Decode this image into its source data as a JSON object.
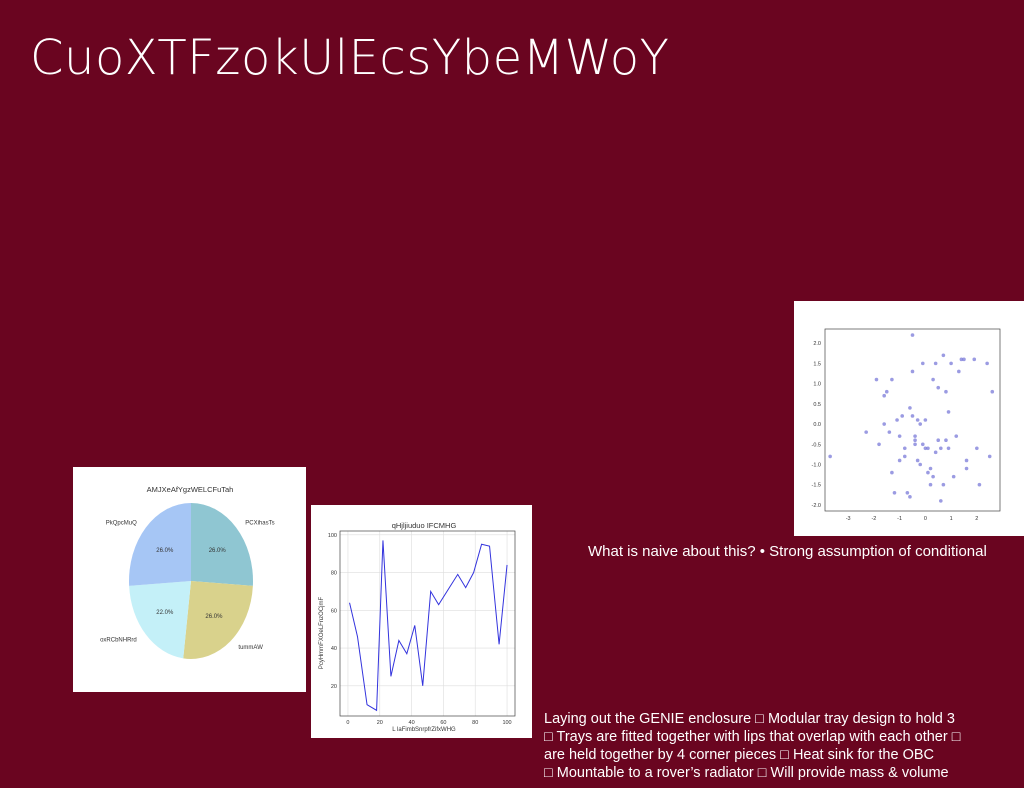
{
  "slide": {
    "title": "CuoXTFzokUlEcsYbeMWoY",
    "caption_top": "What is naive about this? • Strong assumption of conditional",
    "caption_bottom": [
      "Laying out the GENIE enclosure □ Modular tray design to hold 3",
      "□ Trays are fitted together with lips that overlap with each other □",
      "are held together by 4 corner pieces □ Heat sink for the OBC",
      "□ Mountable to a rover’s radiator □ Will provide mass & volume"
    ]
  },
  "chart_data": [
    {
      "type": "pie",
      "title": "AMJXeAfYgzWELCFuTah",
      "labels": [
        "PCXihasTs",
        "tummAW",
        "oxRCbNHRrd",
        "PkQpcMuQ"
      ],
      "values": [
        26.0,
        26.0,
        22.0,
        26.0
      ],
      "value_labels": [
        "26.0%",
        "26.0%",
        "22.0%",
        "26.0%"
      ],
      "colors": [
        "#8fc6d2",
        "#d9d28c",
        "#c4f0f8",
        "#a6c6f5"
      ]
    },
    {
      "type": "line",
      "title": "qHjljiuduo IFCMHG",
      "xlabel": "L laFimbSnrpfrZifxWHG",
      "ylabel": "PcyHmmFXOeLFnzOCjmF",
      "x": [
        1,
        6,
        12,
        18,
        22,
        27,
        32,
        37,
        42,
        47,
        52,
        57,
        63,
        69,
        74,
        79,
        84,
        89,
        95,
        100
      ],
      "y": [
        64,
        46,
        10,
        7,
        97,
        25,
        44,
        37,
        52,
        20,
        70,
        63,
        71,
        79,
        72,
        80,
        95,
        94,
        42,
        84
      ],
      "xlim": [
        -5,
        105
      ],
      "ylim": [
        4,
        102
      ],
      "xticks": [
        0,
        20,
        40,
        60,
        80,
        100
      ],
      "yticks": [
        20,
        40,
        60,
        80,
        100
      ],
      "grid": true,
      "color": "#3333dd"
    },
    {
      "type": "scatter",
      "xlim": [
        -3.9,
        2.9
      ],
      "ylim": [
        -2.15,
        2.35
      ],
      "xticks": [
        -3,
        -2,
        -1,
        0,
        1,
        2
      ],
      "yticks": [
        -2.0,
        -1.5,
        -1.0,
        -0.5,
        0.0,
        0.5,
        1.0,
        1.5,
        2.0
      ],
      "color": "#7a7ad8",
      "x": [
        -3.7,
        -0.5,
        -2.3,
        -1.9,
        -1.8,
        -1.6,
        -1.5,
        -1.4,
        -1.3,
        -1.2,
        -1.1,
        -1.0,
        -1.0,
        -0.9,
        -0.8,
        -0.8,
        -0.7,
        -0.6,
        -0.6,
        -0.5,
        -0.5,
        -0.4,
        -0.4,
        -0.3,
        -0.3,
        -0.2,
        -0.2,
        -0.1,
        -0.1,
        0.0,
        0.0,
        0.1,
        0.1,
        0.2,
        0.2,
        0.3,
        0.3,
        0.4,
        0.4,
        0.5,
        0.5,
        0.6,
        0.6,
        0.7,
        0.7,
        0.8,
        0.8,
        0.9,
        1.0,
        1.1,
        1.3,
        1.4,
        1.5,
        1.6,
        1.6,
        1.9,
        2.0,
        2.1,
        2.4,
        2.5,
        2.6,
        -1.6,
        -1.3,
        -0.4,
        0.9,
        1.2
      ],
      "y": [
        -0.8,
        2.2,
        -0.2,
        1.1,
        -0.5,
        0.7,
        0.8,
        -0.2,
        1.1,
        -1.7,
        0.1,
        -0.3,
        -0.9,
        0.2,
        -0.8,
        -0.6,
        -1.7,
        -1.8,
        0.4,
        0.2,
        1.3,
        -0.3,
        -0.5,
        0.1,
        -0.9,
        0.0,
        -1.0,
        1.5,
        -0.5,
        0.1,
        -0.6,
        -0.6,
        -1.2,
        -1.1,
        -1.5,
        1.1,
        -1.3,
        -0.7,
        1.5,
        -0.4,
        0.9,
        -1.9,
        -0.6,
        -1.5,
        1.7,
        0.8,
        -0.4,
        -0.6,
        1.5,
        -1.3,
        1.3,
        1.6,
        1.6,
        -0.9,
        -1.1,
        1.6,
        -0.6,
        -1.5,
        1.5,
        -0.8,
        0.8,
        0.0,
        -1.2,
        -0.4,
        0.3,
        -0.3
      ]
    }
  ]
}
